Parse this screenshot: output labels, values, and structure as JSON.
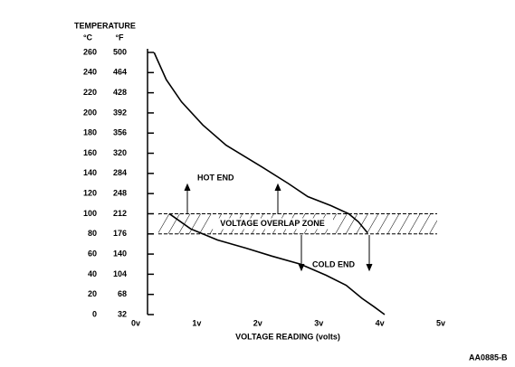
{
  "chart_data": {
    "type": "line",
    "title": "TEMPERATURE",
    "y_label": "°C",
    "y2_label": "°F",
    "x_label": "VOLTAGE READING (volts)",
    "figure_id": "AA0885-B",
    "ylim": [
      0,
      260
    ],
    "yticks": [
      0,
      20,
      40,
      60,
      80,
      100,
      120,
      140,
      160,
      180,
      200,
      220,
      240,
      260
    ],
    "y2lim": [
      32,
      500
    ],
    "y2ticks": [
      32,
      68,
      104,
      140,
      176,
      212,
      248,
      284,
      320,
      356,
      392,
      428,
      464,
      500
    ],
    "xlim": [
      0,
      5
    ],
    "xticks": [
      {
        "value": 0,
        "label": "0v"
      },
      {
        "value": 1,
        "label": "1v"
      },
      {
        "value": 2,
        "label": "2v"
      },
      {
        "value": 3,
        "label": "3v"
      },
      {
        "value": 4,
        "label": "4v"
      },
      {
        "value": 5,
        "label": "5v"
      }
    ],
    "zone": {
      "label": "VOLTAGE OVERLAP ZONE",
      "xlim": [
        0.37,
        4.94
      ],
      "ylim": [
        80,
        100
      ]
    },
    "series": [
      {
        "name": "HOT END",
        "color": "#000000",
        "x": [
          0.3,
          0.5,
          0.75,
          1.1,
          1.48,
          2.08,
          2.5,
          2.82,
          3.2,
          3.49,
          3.65,
          3.8
        ],
        "values": [
          260,
          233,
          211,
          188,
          168,
          146,
          130,
          117,
          108,
          100,
          92,
          81
        ]
      },
      {
        "name": "COLD END",
        "color": "#000000",
        "x": [
          0.55,
          0.9,
          1.34,
          1.8,
          2.23,
          2.7,
          3.12,
          3.45,
          3.71,
          3.9,
          4.08
        ],
        "values": [
          100,
          85,
          74,
          66,
          58,
          50,
          39,
          29,
          16,
          8,
          0
        ]
      }
    ]
  }
}
